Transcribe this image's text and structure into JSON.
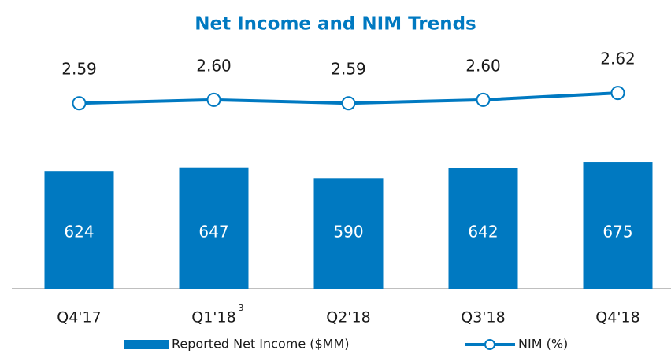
{
  "chart_data": {
    "type": "bar",
    "title": "Net Income and NIM Trends",
    "categories": [
      "Q4'17",
      "Q1'18",
      "Q2'18",
      "Q3'18",
      "Q4'18"
    ],
    "category_superscripts": [
      null,
      "3",
      null,
      null,
      null
    ],
    "series": [
      {
        "name": "Reported Net Income ($MM)",
        "type": "bar",
        "color": "#0079c1",
        "values": [
          624,
          647,
          590,
          642,
          675
        ]
      },
      {
        "name": "NIM (%)",
        "type": "line",
        "axis": "y2",
        "color": "#0079c1",
        "values": [
          2.59,
          2.6,
          2.59,
          2.6,
          2.62
        ],
        "value_labels": [
          "2.59",
          "2.60",
          "2.59",
          "2.60",
          "2.62"
        ]
      }
    ],
    "ylim": [
      0,
      1300
    ],
    "y2lim": [
      2.05,
      2.76
    ],
    "grid": false
  }
}
